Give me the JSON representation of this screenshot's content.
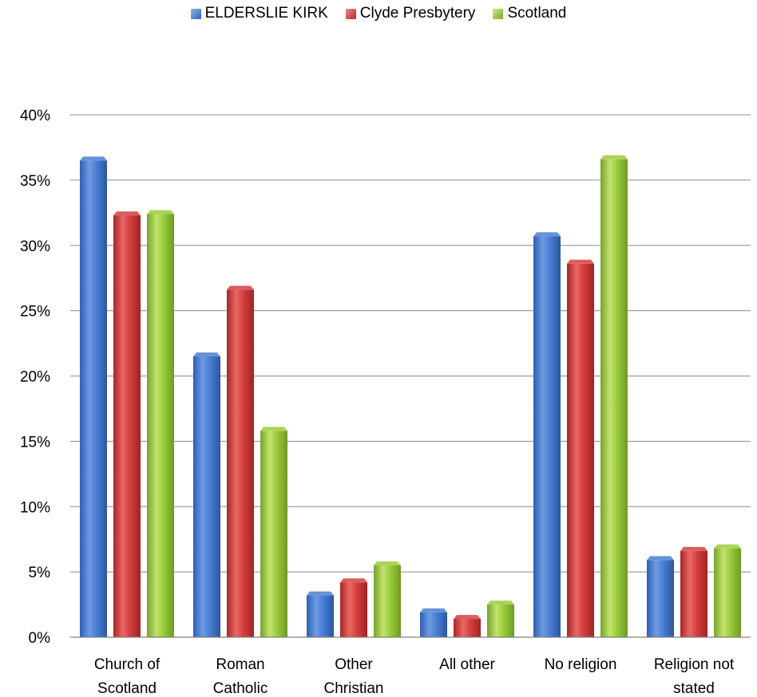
{
  "chart_data": {
    "type": "bar",
    "categories": [
      [
        "Church of",
        "Scotland"
      ],
      [
        "Roman",
        "Catholic"
      ],
      [
        "Other",
        "Christian"
      ],
      [
        "All other"
      ],
      [
        "No religion"
      ],
      [
        "Religion not",
        "stated"
      ]
    ],
    "series": [
      {
        "name": "ELDERSLIE KIRK",
        "color": "#4a7fd4",
        "values": [
          36.5,
          21.5,
          3.2,
          1.9,
          30.7,
          5.9
        ]
      },
      {
        "name": "Clyde Presbytery",
        "color": "#d6403f",
        "values": [
          32.3,
          26.6,
          4.2,
          1.4,
          28.6,
          6.6
        ]
      },
      {
        "name": "Scotland",
        "color": "#9ccc3c",
        "values": [
          32.4,
          15.8,
          5.5,
          2.5,
          36.6,
          6.8
        ]
      }
    ],
    "ylim": [
      0,
      40
    ],
    "yticks": [
      "0%",
      "5%",
      "10%",
      "15%",
      "20%",
      "25%",
      "30%",
      "35%",
      "40%"
    ],
    "grid": true,
    "legend_position": "top"
  }
}
